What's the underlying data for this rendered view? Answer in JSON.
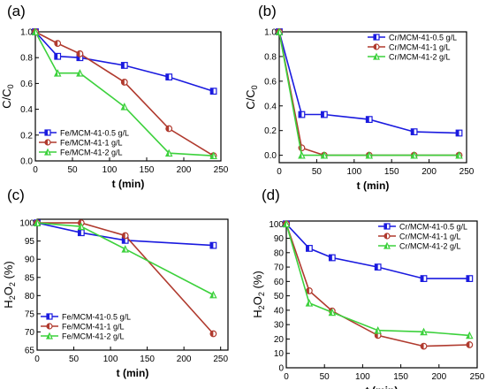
{
  "chart_data": [
    {
      "panel_label": "(a)",
      "type": "line",
      "xlabel": "t (min)",
      "ylabel": "C/C",
      "ylabel_sub": "0",
      "xlim": [
        0,
        250
      ],
      "ylim": [
        0,
        1.0
      ],
      "xticks": [
        "0",
        "50",
        "100",
        "150",
        "200",
        "250"
      ],
      "xtick_values": [
        0,
        50,
        100,
        150,
        200,
        250
      ],
      "yticks": [
        "0.0",
        "0.2",
        "0.4",
        "0.6",
        "0.8",
        "1.0"
      ],
      "ytick_values": [
        0,
        0.2,
        0.4,
        0.6,
        0.8,
        1.0
      ],
      "legend_position": "bottom-left",
      "series": [
        {
          "name": "Fe/MCM-41-0.5 g/L",
          "color": "#1a1adf",
          "marker": "half-square",
          "x": [
            0,
            30,
            60,
            120,
            180,
            240
          ],
          "y": [
            1.0,
            0.81,
            0.8,
            0.74,
            0.65,
            0.54
          ]
        },
        {
          "name": "Fe/MCM-41-1 g/L",
          "color": "#b03a2e",
          "marker": "half-circle",
          "x": [
            0,
            30,
            60,
            120,
            180,
            240
          ],
          "y": [
            1.0,
            0.91,
            0.83,
            0.61,
            0.25,
            0.04
          ]
        },
        {
          "name": "Fe/MCM-41-2 g/L",
          "color": "#3cd13c",
          "marker": "half-triangle",
          "x": [
            0,
            30,
            60,
            120,
            180,
            240
          ],
          "y": [
            1.0,
            0.68,
            0.68,
            0.42,
            0.06,
            0.04
          ]
        }
      ]
    },
    {
      "panel_label": "(b)",
      "type": "line",
      "xlabel": "t (min)",
      "ylabel": "C/C",
      "ylabel_sub": "0",
      "xlim": [
        0,
        250
      ],
      "ylim": [
        -0.06,
        1.0
      ],
      "xticks": [
        "0",
        "50",
        "100",
        "150",
        "200",
        "250"
      ],
      "xtick_values": [
        0,
        50,
        100,
        150,
        200,
        250
      ],
      "yticks": [
        "0.0",
        "0.2",
        "0.4",
        "0.6",
        "0.8",
        "1.0"
      ],
      "ytick_values": [
        0,
        0.2,
        0.4,
        0.6,
        0.8,
        1.0
      ],
      "legend_position": "top-right",
      "series": [
        {
          "name": "Cr/MCM-41-0.5 g/L",
          "color": "#1a1adf",
          "marker": "half-square",
          "x": [
            0,
            30,
            60,
            120,
            180,
            240
          ],
          "y": [
            1.0,
            0.33,
            0.33,
            0.29,
            0.19,
            0.18
          ]
        },
        {
          "name": "Cr/MCM-41-1 g/L",
          "color": "#b03a2e",
          "marker": "half-circle",
          "x": [
            0,
            30,
            60,
            120,
            180,
            240
          ],
          "y": [
            1.0,
            0.06,
            0.0,
            0.0,
            0.0,
            0.0
          ]
        },
        {
          "name": "Cr/MCM-41-2 g/L",
          "color": "#3cd13c",
          "marker": "half-triangle",
          "x": [
            0,
            30,
            60,
            120,
            180,
            240
          ],
          "y": [
            1.0,
            0.0,
            0.0,
            0.0,
            0.0,
            0.0
          ]
        }
      ]
    },
    {
      "panel_label": "(c)",
      "type": "line",
      "xlabel": "t (min)",
      "ylabel": "H",
      "ylabel_sub": "2",
      "ylabel_mid": "O",
      "ylabel_sub2": "2",
      "ylabel_tail": " (%)",
      "xlim": [
        0,
        260
      ],
      "ylim": [
        65,
        101
      ],
      "xticks": [
        "0",
        "50",
        "100",
        "150",
        "200",
        "250"
      ],
      "xtick_values": [
        0,
        50,
        100,
        150,
        200,
        250
      ],
      "yticks": [
        "65",
        "70",
        "75",
        "80",
        "85",
        "90",
        "95",
        "100"
      ],
      "ytick_values": [
        65,
        70,
        75,
        80,
        85,
        90,
        95,
        100
      ],
      "legend_position": "bottom-left",
      "series": [
        {
          "name": "Fe/MCM-41-0.5 g/L",
          "color": "#1a1adf",
          "marker": "half-square",
          "x": [
            0,
            60,
            120,
            240
          ],
          "y": [
            100,
            97.3,
            95.2,
            93.8
          ]
        },
        {
          "name": "Fe/MCM-41-1 g/L",
          "color": "#b03a2e",
          "marker": "half-circle",
          "x": [
            0,
            60,
            120,
            240
          ],
          "y": [
            100,
            100,
            96.5,
            69.5
          ]
        },
        {
          "name": "Fe/MCM-41-2 g/L",
          "color": "#3cd13c",
          "marker": "half-triangle",
          "x": [
            0,
            60,
            120,
            240
          ],
          "y": [
            100,
            99.0,
            92.8,
            80.2
          ]
        }
      ]
    },
    {
      "panel_label": "(d)",
      "type": "line",
      "xlabel": "t (min)",
      "ylabel": "H",
      "ylabel_sub": "2",
      "ylabel_mid": "O",
      "ylabel_sub2": "2",
      "ylabel_tail": " (%)",
      "xlim": [
        0,
        250
      ],
      "ylim": [
        0,
        102
      ],
      "xticks": [
        "0",
        "50",
        "100",
        "150",
        "200",
        "250"
      ],
      "xtick_values": [
        0,
        50,
        100,
        150,
        200,
        250
      ],
      "yticks": [
        "0",
        "10",
        "20",
        "30",
        "40",
        "50",
        "60",
        "70",
        "80",
        "90",
        "100"
      ],
      "ytick_values": [
        0,
        10,
        20,
        30,
        40,
        50,
        60,
        70,
        80,
        90,
        100
      ],
      "legend_position": "top-right",
      "series": [
        {
          "name": "Cr/MCM-41-0.5 g/L",
          "color": "#1a1adf",
          "marker": "half-square",
          "x": [
            0,
            30,
            60,
            120,
            180,
            240
          ],
          "y": [
            100,
            83,
            76.5,
            70,
            62,
            62
          ]
        },
        {
          "name": "Cr/MCM-41-1 g/L",
          "color": "#b03a2e",
          "marker": "half-circle",
          "x": [
            0,
            30,
            60,
            120,
            180,
            240
          ],
          "y": [
            100,
            53.5,
            39.5,
            22.5,
            15,
            16
          ]
        },
        {
          "name": "Cr/MCM-41-2 g/L",
          "color": "#3cd13c",
          "marker": "half-triangle",
          "x": [
            0,
            30,
            60,
            120,
            180,
            240
          ],
          "y": [
            100,
            45,
            38.5,
            26,
            25,
            22.5
          ]
        }
      ]
    }
  ]
}
